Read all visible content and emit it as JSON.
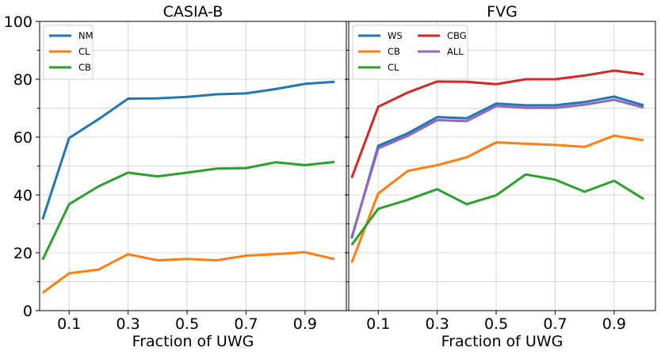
{
  "chart_data": [
    {
      "type": "line",
      "title": "CASIA-B",
      "xlabel": "Fraction of UWG",
      "ylabel": "",
      "xlim": [
        0.0,
        1.04
      ],
      "ylim": [
        0,
        100
      ],
      "x": [
        0.01,
        0.1,
        0.2,
        0.3,
        0.4,
        0.5,
        0.6,
        0.7,
        0.8,
        0.9,
        1.0
      ],
      "xticks": [
        0.1,
        0.3,
        0.5,
        0.7,
        0.9
      ],
      "xtick_labels": [
        "0.1",
        "0.3",
        "0.5",
        "0.7",
        "0.9"
      ],
      "yticks": [
        0,
        20,
        40,
        60,
        80,
        100
      ],
      "ytick_labels": [
        "0",
        "20",
        "40",
        "60",
        "80",
        "100"
      ],
      "grid": true,
      "legend_position": "top-left",
      "legend_columns": 1,
      "series": [
        {
          "name": "NM",
          "color": "#1f77b4",
          "values": [
            31.5,
            59.7,
            66.2,
            73.3,
            73.4,
            73.9,
            74.8,
            75.1,
            76.6,
            78.4,
            79.1
          ]
        },
        {
          "name": "CL",
          "color": "#ff7f0e",
          "values": [
            6.2,
            12.9,
            14.2,
            19.5,
            17.4,
            17.9,
            17.4,
            19.0,
            19.5,
            20.2,
            17.8
          ]
        },
        {
          "name": "CB",
          "color": "#2ca02c",
          "values": [
            17.6,
            36.8,
            43.0,
            47.7,
            46.4,
            47.7,
            49.1,
            49.3,
            51.3,
            50.3,
            51.4
          ]
        }
      ]
    },
    {
      "type": "line",
      "title": "FVG",
      "xlabel": "Fraction of UWG",
      "ylabel": "",
      "xlim": [
        0.0,
        1.04
      ],
      "ylim": [
        0,
        100
      ],
      "x": [
        0.01,
        0.1,
        0.2,
        0.3,
        0.4,
        0.5,
        0.6,
        0.7,
        0.8,
        0.9,
        1.0
      ],
      "xticks": [
        0.1,
        0.3,
        0.5,
        0.7,
        0.9
      ],
      "xtick_labels": [
        "0.1",
        "0.3",
        "0.5",
        "0.7",
        "0.9"
      ],
      "yticks": [
        0,
        20,
        40,
        60,
        80,
        100
      ],
      "grid": true,
      "legend_position": "top-left",
      "legend_columns": 2,
      "series": [
        {
          "name": "WS",
          "color": "#1f77b4",
          "values": [
            25.0,
            57.0,
            61.3,
            66.9,
            66.5,
            71.6,
            71.0,
            71.0,
            72.1,
            74.0,
            71.0
          ]
        },
        {
          "name": "CB",
          "color": "#ff7f0e",
          "values": [
            16.6,
            40.5,
            48.3,
            50.3,
            53.0,
            58.2,
            57.7,
            57.3,
            56.6,
            60.5,
            58.9
          ]
        },
        {
          "name": "CL",
          "color": "#2ca02c",
          "values": [
            22.7,
            35.2,
            38.3,
            42.0,
            36.8,
            39.9,
            47.1,
            45.3,
            41.1,
            44.9,
            38.6
          ]
        },
        {
          "name": "CBG",
          "color": "#d62728",
          "values": [
            45.9,
            70.5,
            75.4,
            79.2,
            79.1,
            78.3,
            80.0,
            80.0,
            81.3,
            83.0,
            81.7
          ]
        },
        {
          "name": "ALL",
          "color": "#9467bd",
          "values": [
            25.4,
            56.1,
            60.4,
            65.9,
            65.5,
            70.7,
            70.1,
            70.1,
            71.2,
            72.9,
            70.2
          ]
        }
      ]
    }
  ]
}
